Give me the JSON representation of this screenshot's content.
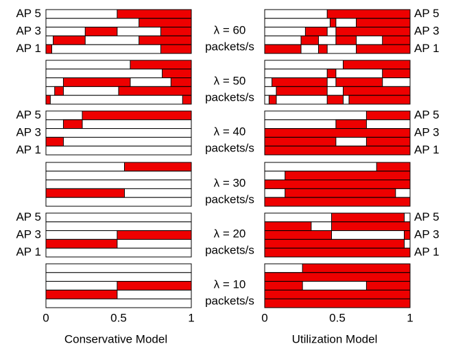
{
  "chart_data": [
    {
      "type": "schedule",
      "xlabel": "Conservative Model",
      "xlim": [
        0,
        1
      ],
      "xticks": [
        0,
        0.5,
        1
      ],
      "color": "#ee0000",
      "label_side": "left",
      "panels": [
        {
          "labels": [
            "AP 5",
            "AP 3",
            "AP 1"
          ],
          "rows": [
            [
              [
                0.49,
                1
              ]
            ],
            [
              [
                0.64,
                1
              ]
            ],
            [
              [
                0.27,
                0.49
              ],
              [
                0.79,
                1
              ]
            ],
            [
              [
                0.05,
                0.27
              ],
              [
                0.64,
                1
              ]
            ],
            [
              [
                0,
                0.04
              ],
              [
                0.79,
                1
              ]
            ]
          ]
        },
        {
          "rows": [
            [
              [
                0.58,
                1
              ]
            ],
            [
              [
                0.8,
                1
              ]
            ],
            [
              [
                0.12,
                0.58
              ],
              [
                0.86,
                1
              ]
            ],
            [
              [
                0.06,
                0.12
              ],
              [
                0.5,
                1
              ]
            ],
            [
              [
                0,
                0.03
              ],
              [
                0.94,
                1
              ]
            ]
          ]
        },
        {
          "labels": [
            "AP 5",
            "AP 3",
            "AP 1"
          ],
          "rows": [
            [
              [
                0.25,
                1
              ]
            ],
            [
              [
                0.12,
                0.25
              ]
            ],
            [],
            [
              [
                0,
                0.12
              ]
            ],
            []
          ]
        },
        {
          "rows": [
            [
              [
                0.54,
                1
              ]
            ],
            [],
            [],
            [
              [
                0,
                0.54
              ]
            ],
            []
          ]
        },
        {
          "labels": [
            "AP 5",
            "AP 3",
            "AP 1"
          ],
          "rows": [
            [],
            [],
            [
              [
                0.49,
                1
              ]
            ],
            [
              [
                0,
                0.49
              ]
            ],
            []
          ]
        },
        {
          "rows": [
            [],
            [],
            [
              [
                0.49,
                1
              ]
            ],
            [
              [
                0,
                0.49
              ]
            ],
            []
          ]
        }
      ]
    },
    {
      "type": "schedule",
      "xlabel": "Utilization Model",
      "xlim": [
        0,
        1
      ],
      "xticks": [
        0,
        0.5,
        1
      ],
      "color": "#ee0000",
      "label_side": "right",
      "panels": [
        {
          "labels": [
            "AP 5",
            "AP 3",
            "AP 1"
          ],
          "caption": [
            "λ = 60",
            "packets/s"
          ],
          "rows": [
            [
              [
                0.43,
                1
              ]
            ],
            [
              [
                0.45,
                0.49
              ],
              [
                0.63,
                1
              ]
            ],
            [
              [
                0.28,
                0.43
              ],
              [
                0.49,
                1
              ]
            ],
            [
              [
                0.25,
                0.37
              ],
              [
                0.49,
                0.63
              ],
              [
                0.81,
                1
              ]
            ],
            [
              [
                0,
                0.25
              ],
              [
                0.37,
                0.43
              ],
              [
                0.63,
                1
              ]
            ]
          ]
        },
        {
          "caption": [
            "λ = 50",
            "packets/s"
          ],
          "rows": [
            [
              [
                0.54,
                1
              ]
            ],
            [
              [
                0.43,
                0.49
              ],
              [
                0.81,
                1
              ]
            ],
            [
              [
                0.05,
                0.43
              ],
              [
                0.49,
                0.81
              ]
            ],
            [
              [
                0.08,
                0.43
              ],
              [
                0.54,
                1
              ]
            ],
            [
              [
                0.03,
                0.08
              ],
              [
                0.43,
                0.54
              ],
              [
                0.58,
                1
              ]
            ]
          ]
        },
        {
          "labels": [
            "AP 5",
            "AP 3",
            "AP 1"
          ],
          "caption": [
            "λ = 40",
            "packets/s"
          ],
          "rows": [
            [
              [
                0.7,
                1
              ]
            ],
            [
              [
                0.49,
                0.7
              ]
            ],
            [
              [
                0,
                1
              ]
            ],
            [
              [
                0,
                0.49
              ],
              [
                0.7,
                1
              ]
            ],
            [
              [
                0,
                1
              ]
            ]
          ]
        },
        {
          "caption": [
            "λ = 30",
            "packets/s"
          ],
          "rows": [
            [
              [
                0.77,
                1
              ]
            ],
            [
              [
                0.14,
                1
              ]
            ],
            [
              [
                0,
                1
              ]
            ],
            [
              [
                0.14,
                0.9
              ]
            ],
            [
              [
                0,
                1
              ]
            ]
          ]
        },
        {
          "labels": [
            "AP 5",
            "AP 3",
            "AP 1"
          ],
          "caption": [
            "λ = 20",
            "packets/s"
          ],
          "rows": [
            [
              [
                0.46,
                0.96
              ]
            ],
            [
              [
                0,
                0.32
              ],
              [
                0.46,
                1
              ]
            ],
            [
              [
                0,
                0.46
              ],
              [
                0.96,
                1
              ]
            ],
            [
              [
                0,
                0.96
              ]
            ],
            [
              [
                0,
                1
              ]
            ]
          ]
        },
        {
          "caption": [
            "λ = 10",
            "packets/s"
          ],
          "rows": [
            [
              [
                0.26,
                1
              ]
            ],
            [
              [
                0,
                1
              ]
            ],
            [
              [
                0,
                0.26
              ],
              [
                0.7,
                1
              ]
            ],
            [
              [
                0,
                1
              ]
            ],
            [
              [
                0,
                1
              ]
            ]
          ]
        }
      ]
    }
  ]
}
